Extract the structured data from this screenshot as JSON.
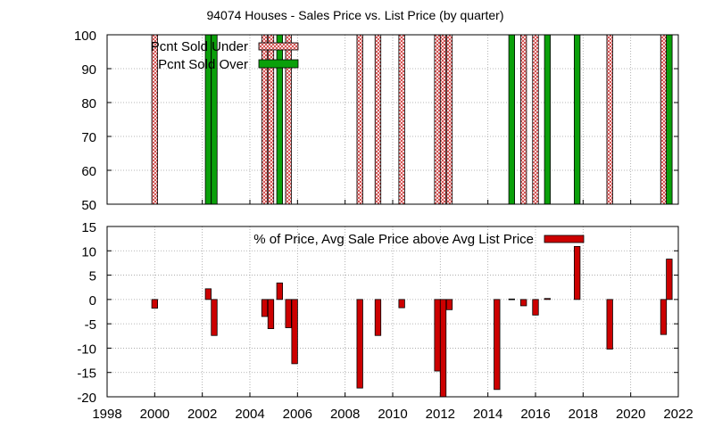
{
  "title": "94074 Houses - Sales Price vs. List Price (by quarter)",
  "colors": {
    "green": "#0aa00a",
    "red": "#cc0000",
    "hatch": "#cc3333",
    "grid": "#a0a0a0"
  },
  "chart_data": [
    {
      "type": "bar",
      "title": "94074 Houses - Sales Price vs. List Price (by quarter)",
      "ylim": [
        50,
        100
      ],
      "xlim": [
        1998,
        2022
      ],
      "yticks": [
        "50",
        "60",
        "70",
        "80",
        "90",
        "100"
      ],
      "grid": true,
      "legend_placement": "top-left",
      "series": [
        {
          "name": "Pcnt Sold Under",
          "style": "hatched",
          "x": [
            2000.0,
            2004.62,
            2004.88,
            2005.62,
            2008.62,
            2009.38,
            2010.38,
            2011.88,
            2012.12,
            2012.38,
            2015.5,
            2016.0,
            2019.12,
            2021.38
          ],
          "values": [
            100,
            100,
            100,
            100,
            100,
            100,
            100,
            100,
            100,
            100,
            100,
            100,
            100,
            100
          ]
        },
        {
          "name": "Pcnt Sold Over",
          "style": "solid",
          "x": [
            2002.25,
            2002.5,
            2005.25,
            2015.0,
            2016.5,
            2017.75,
            2021.62
          ],
          "values": [
            100,
            100,
            100,
            100,
            100,
            100,
            100
          ]
        }
      ]
    },
    {
      "type": "bar",
      "ylim": [
        -20,
        15
      ],
      "xlim": [
        1998,
        2022
      ],
      "yticks": [
        "-20",
        "-15",
        "-10",
        "-5",
        "0",
        "5",
        "10",
        "15"
      ],
      "xticks": [
        "1998",
        "2000",
        "2002",
        "2004",
        "2006",
        "2008",
        "2010",
        "2012",
        "2014",
        "2016",
        "2018",
        "2020",
        "2022"
      ],
      "grid": true,
      "legend_placement": "top-right",
      "series": [
        {
          "name": "% of Price, Avg Sale Price above Avg List Price",
          "x": [
            2000.0,
            2002.25,
            2002.5,
            2004.62,
            2004.88,
            2005.25,
            2005.62,
            2005.88,
            2008.62,
            2009.38,
            2010.38,
            2011.88,
            2012.12,
            2012.38,
            2014.38,
            2015.0,
            2015.5,
            2016.0,
            2016.5,
            2017.75,
            2019.12,
            2021.38,
            2021.62
          ],
          "values": [
            -1.8,
            2.2,
            -7.4,
            -3.5,
            -6.0,
            3.4,
            -5.8,
            -13.2,
            -18.2,
            -7.4,
            -1.7,
            -14.7,
            -20.0,
            -2.1,
            -18.5,
            0.1,
            -1.3,
            -3.2,
            0.2,
            10.9,
            -10.2,
            -7.2,
            8.3
          ]
        }
      ]
    }
  ]
}
